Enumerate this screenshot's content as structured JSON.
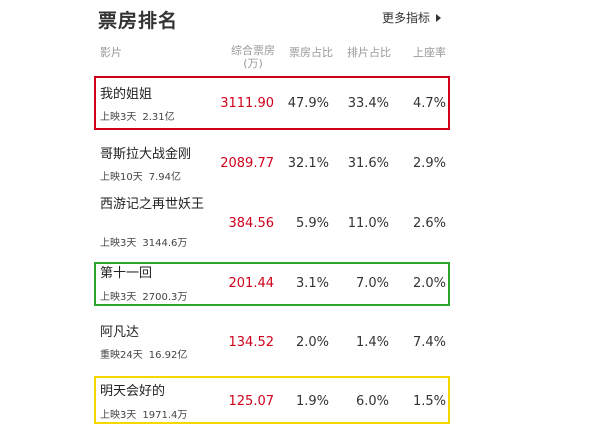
{
  "header": {
    "title": "票房排名",
    "more_label": "更多指标"
  },
  "columns": {
    "film": "影片",
    "box_office": "综合票房(万)",
    "box_share": "票房占比",
    "screening_share": "排片占比",
    "seat_rate": "上座率"
  },
  "rows": [
    {
      "name": "我的姐姐",
      "status": "上映3天",
      "total": "2.31亿",
      "box_office": "3111.90",
      "box_share": "47.9%",
      "screening_share": "33.4%",
      "seat_rate": "4.7%",
      "highlight": "red"
    },
    {
      "name": "哥斯拉大战金刚",
      "status": "上映10天",
      "total": "7.94亿",
      "box_office": "2089.77",
      "box_share": "32.1%",
      "screening_share": "31.6%",
      "seat_rate": "2.9%",
      "highlight": ""
    },
    {
      "name": "西游记之再世妖王",
      "status": "上映3天",
      "total": "3144.6万",
      "box_office": "384.56",
      "box_share": "5.9%",
      "screening_share": "11.0%",
      "seat_rate": "2.6%",
      "highlight": ""
    },
    {
      "name": "第十一回",
      "status": "上映3天",
      "total": "2700.3万",
      "box_office": "201.44",
      "box_share": "3.1%",
      "screening_share": "7.0%",
      "seat_rate": "2.0%",
      "highlight": "green"
    },
    {
      "name": "阿凡达",
      "status": "重映24天",
      "total": "16.92亿",
      "box_office": "134.52",
      "box_share": "2.0%",
      "screening_share": "1.4%",
      "seat_rate": "7.4%",
      "highlight": ""
    },
    {
      "name": "明天会好的",
      "status": "上映3天",
      "total": "1971.4万",
      "box_office": "125.07",
      "box_share": "1.9%",
      "screening_share": "6.0%",
      "seat_rate": "1.5%",
      "highlight": "yellow"
    }
  ],
  "colors": {
    "box_office_text": "#d0021b",
    "highlight_red": "#d0021b",
    "highlight_green": "#2aa52a",
    "highlight_yellow": "#f5d800"
  }
}
